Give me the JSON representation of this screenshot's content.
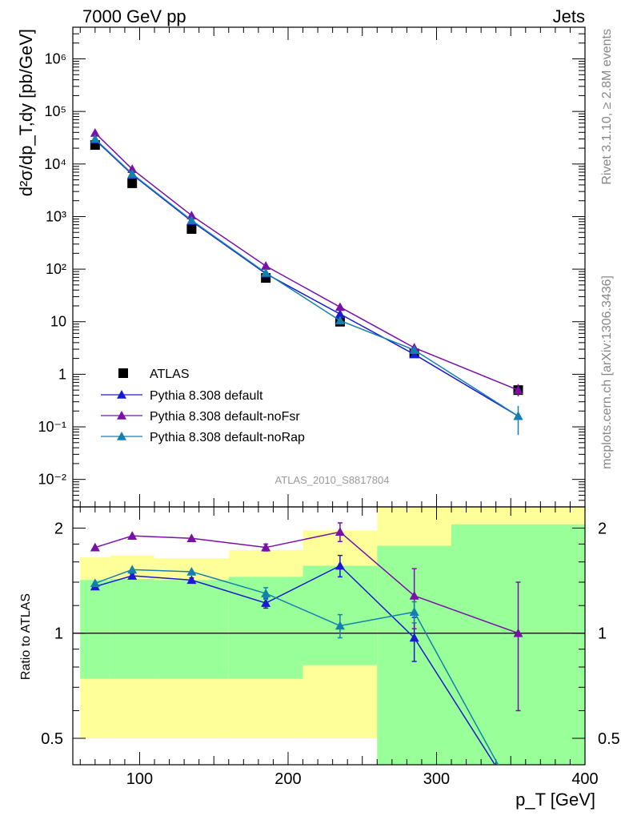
{
  "header": {
    "left": "7000 GeV pp",
    "right": "Jets"
  },
  "side_labels": {
    "top": "Rivet 3.1.10, ≥ 2.8M events",
    "bottom": "mcplots.cern.ch [arXiv:1306.3436]"
  },
  "analysis_id": "ATLAS_2010_S8817804",
  "colors": {
    "atlas": "#000000",
    "default": "#1a1ad0",
    "noFsr": "#7a10a8",
    "noRap": "#1480b0",
    "band_inner": "#99ff99",
    "band_outer": "#ffff99"
  },
  "chart_data": [
    {
      "type": "line",
      "panel": "main",
      "ylabel": "d²σ/dp_T,dy [pb/GeV]",
      "yscale": "log",
      "ylim": [
        0.003,
        4000000
      ],
      "xlim": [
        55,
        400
      ],
      "x": [
        70,
        95,
        135,
        185,
        235,
        285,
        355
      ],
      "yticks": [
        {
          "v": 0.01,
          "label": "10⁻²"
        },
        {
          "v": 0.1,
          "label": "10⁻¹"
        },
        {
          "v": 1,
          "label": "1"
        },
        {
          "v": 10,
          "label": "10"
        },
        {
          "v": 100,
          "label": "10²"
        },
        {
          "v": 1000,
          "label": "10³"
        },
        {
          "v": 10000,
          "label": "10⁴"
        },
        {
          "v": 100000,
          "label": "10⁵"
        },
        {
          "v": 1000000,
          "label": "10⁶"
        }
      ],
      "series": [
        {
          "name": "ATLAS",
          "marker": "square",
          "values": [
            23000,
            4300,
            580,
            68,
            10,
            2.5,
            0.5
          ]
        },
        {
          "name": "Pythia 8.308 default",
          "marker": "triangle",
          "values": [
            29000,
            6300,
            820,
            82,
            14,
            2.4,
            0.16
          ]
        },
        {
          "name": "Pythia 8.308 default-noFsr",
          "marker": "triangle",
          "values": [
            39000,
            8000,
            1050,
            115,
            19,
            3.2,
            0.5
          ]
        },
        {
          "name": "Pythia 8.308 default-noRap",
          "marker": "triangle",
          "values": [
            30000,
            6500,
            850,
            85,
            10.5,
            2.9,
            0.16
          ],
          "errors": [
            0,
            0,
            0,
            0,
            0,
            0,
            0.09
          ]
        }
      ]
    },
    {
      "type": "line",
      "panel": "ratio",
      "ylabel": "Ratio to ATLAS",
      "xlabel": "p_T [GeV]",
      "yscale": "log",
      "ylim": [
        0.42,
        2.3
      ],
      "xlim": [
        55,
        400
      ],
      "xticks": [
        100,
        200,
        300,
        400
      ],
      "yticks": [
        {
          "v": 0.5,
          "label": "0.5"
        },
        {
          "v": 1,
          "label": "1"
        },
        {
          "v": 2,
          "label": "2"
        }
      ],
      "bands": [
        {
          "x0": 60,
          "x1": 80,
          "inner": [
            0.74,
            1.42
          ],
          "outer": [
            0.5,
            1.65
          ]
        },
        {
          "x0": 80,
          "x1": 110,
          "inner": [
            0.74,
            1.43
          ],
          "outer": [
            0.5,
            1.67
          ]
        },
        {
          "x0": 110,
          "x1": 160,
          "inner": [
            0.74,
            1.42
          ],
          "outer": [
            0.5,
            1.64
          ]
        },
        {
          "x0": 160,
          "x1": 210,
          "inner": [
            0.74,
            1.45
          ],
          "outer": [
            0.5,
            1.73
          ]
        },
        {
          "x0": 210,
          "x1": 260,
          "inner": [
            0.81,
            1.56
          ],
          "outer": [
            0.5,
            1.97
          ]
        },
        {
          "x0": 260,
          "x1": 310,
          "inner": [
            0.38,
            1.78
          ],
          "outer": [
            0.38,
            2.35
          ]
        },
        {
          "x0": 310,
          "x1": 400,
          "inner": [
            0.38,
            2.05
          ],
          "outer": [
            0.38,
            2.35
          ]
        }
      ],
      "x": [
        70,
        95,
        135,
        185,
        235,
        285,
        355
      ],
      "series": [
        {
          "name": "Pythia 8.308 default",
          "values": [
            1.36,
            1.46,
            1.42,
            1.22,
            1.56,
            0.97,
            0.33
          ],
          "errors": [
            0.02,
            0.02,
            0.02,
            0.04,
            0.11,
            0.14,
            0
          ]
        },
        {
          "name": "Pythia 8.308 default-noFsr",
          "values": [
            1.76,
            1.9,
            1.87,
            1.76,
            1.95,
            1.28,
            1.0
          ],
          "errors": [
            0,
            0,
            0,
            0.04,
            0.12,
            0.25,
            0.4
          ]
        },
        {
          "name": "Pythia 8.308 default-noRap",
          "values": [
            1.39,
            1.52,
            1.5,
            1.3,
            1.05,
            1.15,
            0.33
          ],
          "errors": [
            0,
            0,
            0,
            0.05,
            0.08,
            0.08,
            0
          ]
        }
      ]
    }
  ]
}
